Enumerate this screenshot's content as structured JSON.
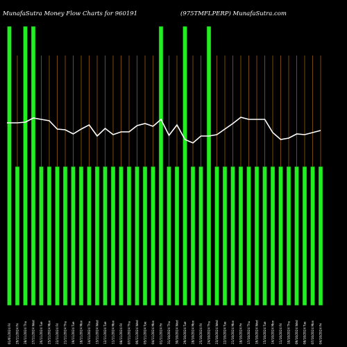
{
  "header": {
    "title_left": "MunafaSutra  Money Flow  Charts for 960191",
    "title_right": "(975TMFLPERP) MunafaSutra.com"
  },
  "colors": {
    "background": "#000000",
    "bar": "#22ee22",
    "bar_dark": "#0a3d0a",
    "gridline": "#9a5a10",
    "line": "#ffffff",
    "text": "#ffffff"
  },
  "chart_data": {
    "type": "bar",
    "title": "MunafaSutra  Money Flow  Charts for 960191",
    "subtitle": "(975TMFLPERP) MunafaSutra.com",
    "dates": [
      "01/01/2024 Fri",
      "29/11/2024 Fri",
      "28/11/2024 Thu",
      "27/11/2024 Wed",
      "26/11/2024 Tue",
      "25/11/2024 Mon",
      "22/11/2024 Fri",
      "21/11/2024 Thu",
      "19/11/2024 Tue",
      "18/11/2024 Mon",
      "14/11/2024 Thu",
      "13/11/2024 Wed",
      "12/11/2024 Tue",
      "11/11/2024 Mon",
      "08/11/2024 Fri",
      "07/11/2024 Thu",
      "06/11/2024 Wed",
      "05/11/2024 Tue",
      "04/11/2024 Mon",
      "01/11/2024 Fri",
      "31/10/2024 Thu",
      "30/10/2024 Wed",
      "29/10/2024 Tue",
      "28/10/2024 Mon",
      "25/10/2024 Fri",
      "24/10/2024 Thu",
      "23/10/2024 Wed",
      "22/10/2024 Tue",
      "21/10/2024 Mon",
      "18/10/2024 Fri",
      "17/10/2024 Thu",
      "16/10/2024 Wed",
      "15/10/2024 Tue",
      "14/10/2024 Mon",
      "11/10/2024 Fri",
      "10/10/2024 Thu",
      "09/10/2024 Wed",
      "08/10/2024 Tue",
      "07/10/2024 Mon",
      "04/10/2024 Fri"
    ],
    "money_flow_bars": [
      1.0,
      0.5,
      1.0,
      1.0,
      0.5,
      0.5,
      0.5,
      0.5,
      0.5,
      0.5,
      0.5,
      0.5,
      0.5,
      0.5,
      0.5,
      0.5,
      0.5,
      0.5,
      0.5,
      1.0,
      0.5,
      0.5,
      1.0,
      0.5,
      0.5,
      1.0,
      0.5,
      0.5,
      0.5,
      0.5,
      0.5,
      0.5,
      0.5,
      0.5,
      0.5,
      0.5,
      0.5,
      0.5,
      0.5,
      0.5
    ],
    "price_line": [
      177,
      177,
      176,
      170,
      172,
      174,
      186,
      187,
      193,
      186,
      180,
      196,
      185,
      194,
      190,
      190,
      181,
      178,
      182,
      172,
      195,
      180,
      201,
      206,
      196,
      196,
      194,
      186,
      178,
      169,
      172,
      172,
      172,
      191,
      201,
      199,
      193,
      194,
      191,
      188
    ],
    "ylim": [
      0,
      1
    ]
  }
}
